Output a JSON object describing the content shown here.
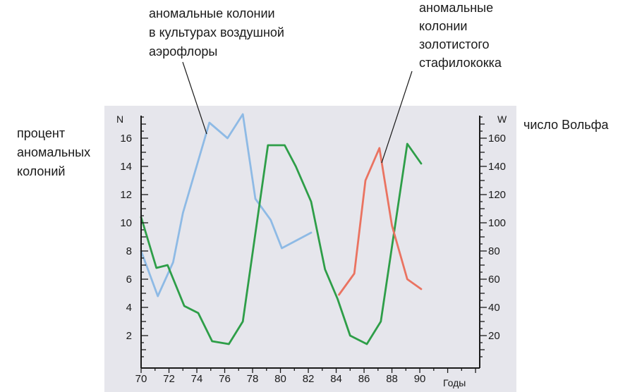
{
  "chart_data": {
    "type": "line",
    "plot_background": "#e6e6ec",
    "xlabel": "Годы",
    "xlim": [
      70,
      94.3
    ],
    "xticks": [
      70,
      72,
      74,
      76,
      78,
      80,
      82,
      84,
      86,
      88,
      90
    ],
    "grid": false,
    "y_left": {
      "symbol": "N",
      "label": [
        "процент",
        "аномальных",
        "колоний"
      ],
      "lim": [
        0,
        17.6
      ],
      "ticks": [
        2,
        4,
        6,
        8,
        10,
        12,
        14,
        16
      ]
    },
    "y_right": {
      "symbol": "W",
      "label": "число Вольфа",
      "lim": [
        0,
        176
      ],
      "ticks": [
        20,
        40,
        60,
        80,
        100,
        120,
        140,
        160
      ]
    },
    "series": [
      {
        "y_axis": "left",
        "color": "#8ebae5",
        "annotation": [
          "аномальные колонии",
          "в культурах воздушной",
          "аэрофлоры"
        ],
        "x": [
          70.0,
          71.2,
          72.3,
          73.0,
          74.9,
          76.2,
          77.3,
          78.2,
          79.3,
          80.1,
          82.2
        ],
        "y": [
          8.0,
          4.8,
          7.2,
          10.7,
          17.1,
          16.0,
          17.7,
          11.7,
          10.2,
          8.2,
          9.3
        ]
      },
      {
        "y_axis": "right",
        "color": "#2e9e48",
        "x": [
          70.0,
          71.1,
          71.9,
          73.1,
          74.1,
          75.1,
          76.3,
          77.3,
          79.1,
          80.3,
          81.1,
          82.2,
          83.2,
          84.1,
          85.0,
          86.2,
          87.2,
          89.1,
          90.1
        ],
        "y": [
          104,
          68,
          70,
          41,
          36,
          16,
          14,
          30,
          155,
          155,
          140,
          115,
          67,
          46,
          20,
          14,
          30,
          156,
          142
        ]
      },
      {
        "y_axis": "left",
        "color": "#ea7361",
        "annotation": [
          "аномальные",
          "колонии",
          "золотистого",
          "стафилококка"
        ],
        "x": [
          84.2,
          85.3,
          86.1,
          87.1,
          88.0,
          89.1,
          90.1
        ],
        "y": [
          4.9,
          6.4,
          13.0,
          15.3,
          9.8,
          6.0,
          5.3
        ]
      }
    ]
  }
}
